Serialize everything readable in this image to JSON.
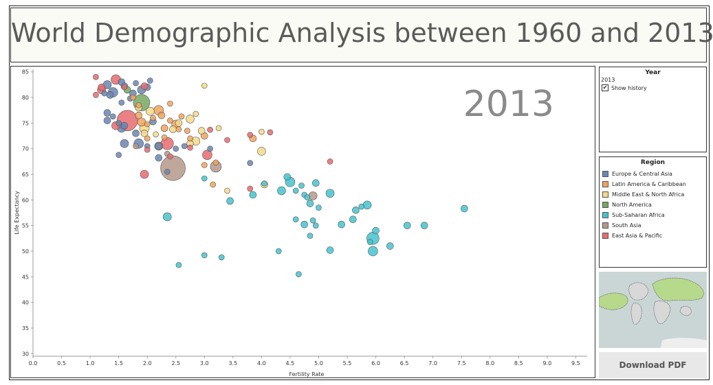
{
  "page": {
    "title": "World Demographic Analysis between 1960 and 2013"
  },
  "controls": {
    "year_title": "Year",
    "year_value": "2013",
    "show_history_label": "Show history",
    "show_history_checked": true,
    "region_title": "Region",
    "download_label": "Download PDF"
  },
  "legend": [
    {
      "name": "Europe & Central Asia",
      "color": "#6b86b3"
    },
    {
      "name": "Latin America & Caribbean",
      "color": "#f2a35d"
    },
    {
      "name": "Middle East & North Africa",
      "color": "#f3d98a"
    },
    {
      "name": "North America",
      "color": "#74a862"
    },
    {
      "name": "Sub-Saharan Africa",
      "color": "#45c3cf"
    },
    {
      "name": "South Asia",
      "color": "#b4998a"
    },
    {
      "name": "East Asia & Pacific",
      "color": "#e86b6f"
    }
  ],
  "chart_data": {
    "type": "scatter",
    "title": "",
    "annotation": "2013",
    "xlabel": "Fertility Rate",
    "ylabel": "Life Expectancy",
    "xlim": [
      0,
      9.7
    ],
    "ylim": [
      29.5,
      85.5
    ],
    "xticks": [
      "0.0",
      "0.5",
      "1.0",
      "1.5",
      "2.0",
      "2.5",
      "3.0",
      "3.5",
      "4.0",
      "4.5",
      "5.0",
      "5.5",
      "6.0",
      "6.5",
      "7.0",
      "7.5",
      "8.0",
      "8.5",
      "9.0",
      "9.5"
    ],
    "yticks": [
      "30",
      "35",
      "40",
      "45",
      "50",
      "55",
      "60",
      "65",
      "70",
      "75",
      "80",
      "85"
    ],
    "series": [
      {
        "name": "Europe & Central Asia",
        "color": "#6b86b3",
        "points": [
          {
            "x": 1.3,
            "y": 82.5,
            "s": 6
          },
          {
            "x": 1.4,
            "y": 81.0,
            "s": 7
          },
          {
            "x": 1.35,
            "y": 80.5,
            "s": 5
          },
          {
            "x": 1.55,
            "y": 83.0,
            "s": 5
          },
          {
            "x": 1.6,
            "y": 82.2,
            "s": 5
          },
          {
            "x": 1.8,
            "y": 82.8,
            "s": 4
          },
          {
            "x": 1.9,
            "y": 81.5,
            "s": 6
          },
          {
            "x": 2.0,
            "y": 82.0,
            "s": 5
          },
          {
            "x": 2.05,
            "y": 83.3,
            "s": 4
          },
          {
            "x": 1.75,
            "y": 80.8,
            "s": 5
          },
          {
            "x": 1.7,
            "y": 79.8,
            "s": 4
          },
          {
            "x": 1.55,
            "y": 79.0,
            "s": 4
          },
          {
            "x": 1.3,
            "y": 77.0,
            "s": 5
          },
          {
            "x": 1.3,
            "y": 75.5,
            "s": 5
          },
          {
            "x": 1.5,
            "y": 75.0,
            "s": 4
          },
          {
            "x": 1.55,
            "y": 74.0,
            "s": 6
          },
          {
            "x": 1.6,
            "y": 71.0,
            "s": 6
          },
          {
            "x": 1.8,
            "y": 73.0,
            "s": 5
          },
          {
            "x": 1.85,
            "y": 71.0,
            "s": 7
          },
          {
            "x": 1.5,
            "y": 68.8,
            "s": 4
          },
          {
            "x": 2.0,
            "y": 70.5,
            "s": 4
          },
          {
            "x": 2.2,
            "y": 68.2,
            "s": 5
          },
          {
            "x": 2.35,
            "y": 65.5,
            "s": 4
          },
          {
            "x": 2.5,
            "y": 70.0,
            "s": 4
          },
          {
            "x": 2.65,
            "y": 70.5,
            "s": 4
          },
          {
            "x": 3.1,
            "y": 70.0,
            "s": 4
          },
          {
            "x": 3.8,
            "y": 67.2,
            "s": 4
          },
          {
            "x": 1.6,
            "y": 74.5,
            "s": 5
          },
          {
            "x": 1.4,
            "y": 76.3,
            "s": 4
          },
          {
            "x": 1.25,
            "y": 80.8,
            "s": 4
          },
          {
            "x": 2.1,
            "y": 75.3,
            "s": 5
          },
          {
            "x": 2.2,
            "y": 70.5,
            "s": 5
          }
        ]
      },
      {
        "name": "Latin America & Caribbean",
        "color": "#f2a35d",
        "points": [
          {
            "x": 1.85,
            "y": 76.5,
            "s": 5
          },
          {
            "x": 1.9,
            "y": 75.2,
            "s": 6
          },
          {
            "x": 2.0,
            "y": 74.8,
            "s": 4
          },
          {
            "x": 2.1,
            "y": 76.0,
            "s": 4
          },
          {
            "x": 2.2,
            "y": 77.5,
            "s": 7
          },
          {
            "x": 2.25,
            "y": 76.5,
            "s": 5
          },
          {
            "x": 2.3,
            "y": 74.0,
            "s": 5
          },
          {
            "x": 2.4,
            "y": 75.5,
            "s": 4
          },
          {
            "x": 2.5,
            "y": 74.8,
            "s": 6
          },
          {
            "x": 2.6,
            "y": 76.3,
            "s": 4
          },
          {
            "x": 2.55,
            "y": 73.8,
            "s": 4
          },
          {
            "x": 2.3,
            "y": 72.2,
            "s": 4
          },
          {
            "x": 2.0,
            "y": 72.0,
            "s": 4
          },
          {
            "x": 2.7,
            "y": 73.5,
            "s": 4
          },
          {
            "x": 2.75,
            "y": 72.0,
            "s": 4
          },
          {
            "x": 3.0,
            "y": 72.5,
            "s": 5
          },
          {
            "x": 3.2,
            "y": 67.3,
            "s": 4
          },
          {
            "x": 3.0,
            "y": 66.8,
            "s": 4
          },
          {
            "x": 3.15,
            "y": 63.0,
            "s": 4
          },
          {
            "x": 3.85,
            "y": 72.0,
            "s": 5
          },
          {
            "x": 1.75,
            "y": 80.0,
            "s": 4
          },
          {
            "x": 2.4,
            "y": 78.8,
            "s": 4
          },
          {
            "x": 1.85,
            "y": 78.5,
            "s": 4
          }
        ]
      },
      {
        "name": "Middle East & North Africa",
        "color": "#f3d98a",
        "points": [
          {
            "x": 1.85,
            "y": 78.0,
            "s": 5
          },
          {
            "x": 2.05,
            "y": 77.3,
            "s": 6
          },
          {
            "x": 1.95,
            "y": 74.0,
            "s": 7
          },
          {
            "x": 2.45,
            "y": 73.8,
            "s": 5
          },
          {
            "x": 2.55,
            "y": 75.0,
            "s": 5
          },
          {
            "x": 2.75,
            "y": 75.8,
            "s": 6
          },
          {
            "x": 2.85,
            "y": 71.5,
            "s": 6
          },
          {
            "x": 2.95,
            "y": 73.5,
            "s": 5
          },
          {
            "x": 3.25,
            "y": 74.0,
            "s": 4
          },
          {
            "x": 2.85,
            "y": 76.8,
            "s": 4
          },
          {
            "x": 3.0,
            "y": 82.3,
            "s": 4
          },
          {
            "x": 4.0,
            "y": 73.3,
            "s": 4
          },
          {
            "x": 4.0,
            "y": 69.5,
            "s": 6
          },
          {
            "x": 4.05,
            "y": 63.0,
            "s": 5
          },
          {
            "x": 3.4,
            "y": 61.8,
            "s": 4
          },
          {
            "x": 2.75,
            "y": 71.0,
            "s": 5
          },
          {
            "x": 1.95,
            "y": 73.0,
            "s": 5
          },
          {
            "x": 2.15,
            "y": 72.8,
            "s": 4
          }
        ]
      },
      {
        "name": "North America",
        "color": "#74a862",
        "points": [
          {
            "x": 1.9,
            "y": 79.0,
            "s": 12
          },
          {
            "x": 1.65,
            "y": 81.5,
            "s": 5
          }
        ]
      },
      {
        "name": "Sub-Saharan Africa",
        "color": "#45c3cf",
        "points": [
          {
            "x": 2.35,
            "y": 56.7,
            "s": 6
          },
          {
            "x": 2.55,
            "y": 47.3,
            "s": 4
          },
          {
            "x": 3.0,
            "y": 49.2,
            "s": 4
          },
          {
            "x": 3.3,
            "y": 48.8,
            "s": 4
          },
          {
            "x": 3.0,
            "y": 64.2,
            "s": 4
          },
          {
            "x": 3.45,
            "y": 59.8,
            "s": 5
          },
          {
            "x": 3.85,
            "y": 61.0,
            "s": 5
          },
          {
            "x": 4.05,
            "y": 63.2,
            "s": 4
          },
          {
            "x": 4.35,
            "y": 61.8,
            "s": 6
          },
          {
            "x": 4.45,
            "y": 64.5,
            "s": 5
          },
          {
            "x": 4.5,
            "y": 63.5,
            "s": 7
          },
          {
            "x": 4.6,
            "y": 61.8,
            "s": 4
          },
          {
            "x": 4.7,
            "y": 62.8,
            "s": 4
          },
          {
            "x": 4.75,
            "y": 61.0,
            "s": 4
          },
          {
            "x": 4.8,
            "y": 60.5,
            "s": 4
          },
          {
            "x": 4.85,
            "y": 59.3,
            "s": 5
          },
          {
            "x": 4.95,
            "y": 63.3,
            "s": 5
          },
          {
            "x": 5.0,
            "y": 58.5,
            "s": 4
          },
          {
            "x": 4.9,
            "y": 56.0,
            "s": 4
          },
          {
            "x": 4.95,
            "y": 55.0,
            "s": 4
          },
          {
            "x": 4.75,
            "y": 55.2,
            "s": 5
          },
          {
            "x": 4.6,
            "y": 56.2,
            "s": 4
          },
          {
            "x": 4.85,
            "y": 53.0,
            "s": 4
          },
          {
            "x": 4.3,
            "y": 50.0,
            "s": 4
          },
          {
            "x": 4.65,
            "y": 45.5,
            "s": 4
          },
          {
            "x": 5.2,
            "y": 61.3,
            "s": 6
          },
          {
            "x": 5.4,
            "y": 55.2,
            "s": 5
          },
          {
            "x": 5.6,
            "y": 56.2,
            "s": 5
          },
          {
            "x": 5.65,
            "y": 58.0,
            "s": 5
          },
          {
            "x": 5.75,
            "y": 58.7,
            "s": 4
          },
          {
            "x": 5.85,
            "y": 59.0,
            "s": 6
          },
          {
            "x": 5.9,
            "y": 51.8,
            "s": 4
          },
          {
            "x": 5.95,
            "y": 52.5,
            "s": 9
          },
          {
            "x": 6.0,
            "y": 54.0,
            "s": 5
          },
          {
            "x": 5.95,
            "y": 50.0,
            "s": 7
          },
          {
            "x": 6.25,
            "y": 51.0,
            "s": 5
          },
          {
            "x": 6.55,
            "y": 55.0,
            "s": 5
          },
          {
            "x": 6.85,
            "y": 55.0,
            "s": 5
          },
          {
            "x": 7.55,
            "y": 58.3,
            "s": 5
          },
          {
            "x": 5.2,
            "y": 50.2,
            "s": 5
          }
        ]
      },
      {
        "name": "South Asia",
        "color": "#b4998a",
        "points": [
          {
            "x": 2.45,
            "y": 66.2,
            "s": 18
          },
          {
            "x": 3.2,
            "y": 66.5,
            "s": 8
          },
          {
            "x": 2.2,
            "y": 70.5,
            "s": 6
          },
          {
            "x": 4.9,
            "y": 60.8,
            "s": 6
          },
          {
            "x": 2.35,
            "y": 69.0,
            "s": 4
          },
          {
            "x": 1.8,
            "y": 70.5,
            "s": 4
          }
        ]
      },
      {
        "name": "East Asia & Pacific",
        "color": "#e86b6f",
        "points": [
          {
            "x": 1.1,
            "y": 84.0,
            "s": 4
          },
          {
            "x": 1.2,
            "y": 82.0,
            "s": 5
          },
          {
            "x": 1.45,
            "y": 83.5,
            "s": 7
          },
          {
            "x": 1.65,
            "y": 75.5,
            "s": 15
          },
          {
            "x": 1.45,
            "y": 74.5,
            "s": 6
          },
          {
            "x": 1.2,
            "y": 81.5,
            "s": 6
          },
          {
            "x": 1.1,
            "y": 80.5,
            "s": 4
          },
          {
            "x": 1.95,
            "y": 82.2,
            "s": 5
          },
          {
            "x": 2.0,
            "y": 69.8,
            "s": 4
          },
          {
            "x": 1.95,
            "y": 65.0,
            "s": 6
          },
          {
            "x": 2.35,
            "y": 71.0,
            "s": 9
          },
          {
            "x": 2.75,
            "y": 70.2,
            "s": 4
          },
          {
            "x": 3.05,
            "y": 68.8,
            "s": 7
          },
          {
            "x": 3.1,
            "y": 73.7,
            "s": 4
          },
          {
            "x": 3.4,
            "y": 71.7,
            "s": 4
          },
          {
            "x": 3.8,
            "y": 72.7,
            "s": 4
          },
          {
            "x": 3.8,
            "y": 62.2,
            "s": 4
          },
          {
            "x": 4.15,
            "y": 73.2,
            "s": 4
          },
          {
            "x": 5.2,
            "y": 67.5,
            "s": 4
          },
          {
            "x": 1.6,
            "y": 82.0,
            "s": 4
          },
          {
            "x": 2.4,
            "y": 68.5,
            "s": 4
          }
        ]
      }
    ]
  }
}
